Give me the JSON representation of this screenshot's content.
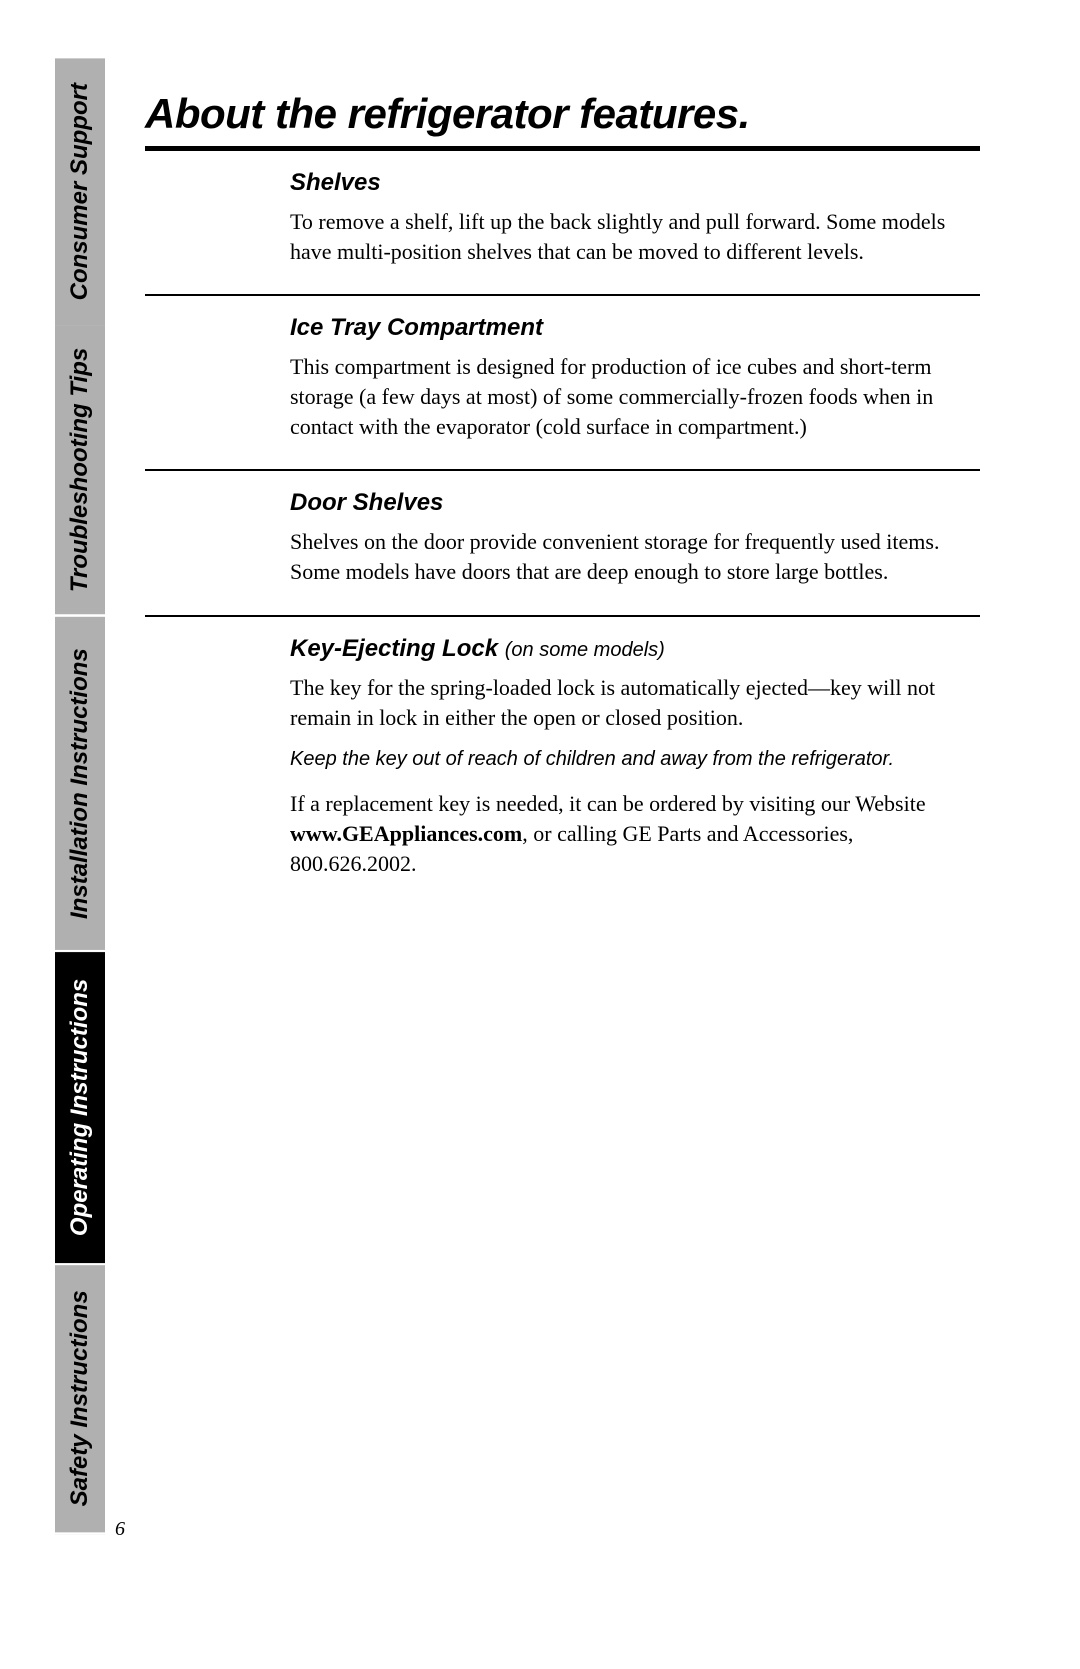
{
  "page_number": "6",
  "sidebar": {
    "tabs": [
      {
        "label": "Safety Instructions",
        "style": "gray",
        "flex": 230
      },
      {
        "label": "Operating Instructions",
        "style": "black",
        "flex": 270
      },
      {
        "label": "Installation Instructions",
        "style": "gray",
        "flex": 290
      },
      {
        "label": "Troubleshooting Tips",
        "style": "gray",
        "flex": 250
      },
      {
        "label": "Consumer Support",
        "style": "gray",
        "flex": 230
      }
    ]
  },
  "title": "About the refrigerator features.",
  "sections": [
    {
      "heading": "Shelves",
      "body": "To remove a shelf, lift up the back slightly and pull forward. Some models have multi-position shelves that can be moved to different levels."
    },
    {
      "heading": "Ice Tray Compartment",
      "body": "This compartment is designed for production of ice cubes and short-term storage (a few days at most) of some commercially-frozen foods when in contact with the evaporator (cold surface in compartment.)"
    },
    {
      "heading": "Door Shelves",
      "body": "Shelves on the door provide convenient storage for frequently used items. Some models have doors that are deep enough to store large bottles."
    }
  ],
  "key_lock": {
    "heading": "Key-Ejecting Lock",
    "qualifier": "(on some models)",
    "p1": "The key for the spring-loaded lock is automatically ejected—key will not remain in lock in either the open or closed position.",
    "note": "Keep the key out of reach of children and away from the refrigerator.",
    "p2_pre": "If a replacement key is needed, it can be ordered by visiting our Website ",
    "website": "www.GEAppliances.com",
    "p2_post": ", or calling GE Parts and Accessories, 800.626.2002."
  }
}
